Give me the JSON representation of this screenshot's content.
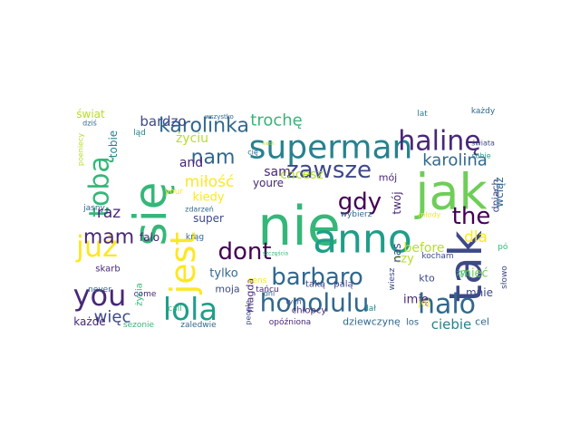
{
  "palette": [
    "#440154",
    "#482878",
    "#3e4989",
    "#31688e",
    "#26828e",
    "#1f9e89",
    "#35b779",
    "#6ece58",
    "#b5de2b",
    "#fde725"
  ],
  "words": [
    "się",
    "nie",
    "jak",
    "anno",
    "tak",
    "superman",
    "jest",
    "halinę",
    "lola",
    "honolulu",
    "barbaro",
    "you",
    "dont",
    "halo",
    "zawsze",
    "już",
    "tobą",
    "karolinka",
    "mam",
    "nam",
    "gdy",
    "the",
    "karolina",
    "trochę",
    "bardzo",
    "miłość",
    "więc",
    "raz",
    "and",
    "ciebie",
    "dla",
    "życiu",
    "chcesz",
    "youre",
    "sam",
    "kiedy",
    "tobie",
    "before",
    "imię",
    "mieć",
    "czy",
    "mnie",
    "twój",
    "nas",
    "super",
    "falo",
    "tylko",
    "moja",
    "magda",
    "wciąż",
    "dniach",
    "mój",
    "kto",
    "żyć",
    "jej",
    "cel",
    "los",
    "dziewczynę",
    "opóźniona",
    "zaledwie",
    "chłopcy",
    "dał",
    "każde",
    "sezonie",
    "people",
    "życia",
    "skarb",
    "krąg",
    "taką",
    "palą",
    "kocham",
    "wiesz",
    "never",
    "come",
    "call",
    "świat",
    "lat",
    "każdy",
    "wszystko",
    "ląd",
    "your",
    "jasny",
    "zdarzeń",
    "sobie",
    "wybierz",
    "młody",
    "pól",
    "słowo",
    "tańcu",
    "sens",
    "dni",
    "cię",
    "tych",
    "świata",
    "dziś",
    "poeniecy",
    "szczęścia",
    "niech"
  ]
}
